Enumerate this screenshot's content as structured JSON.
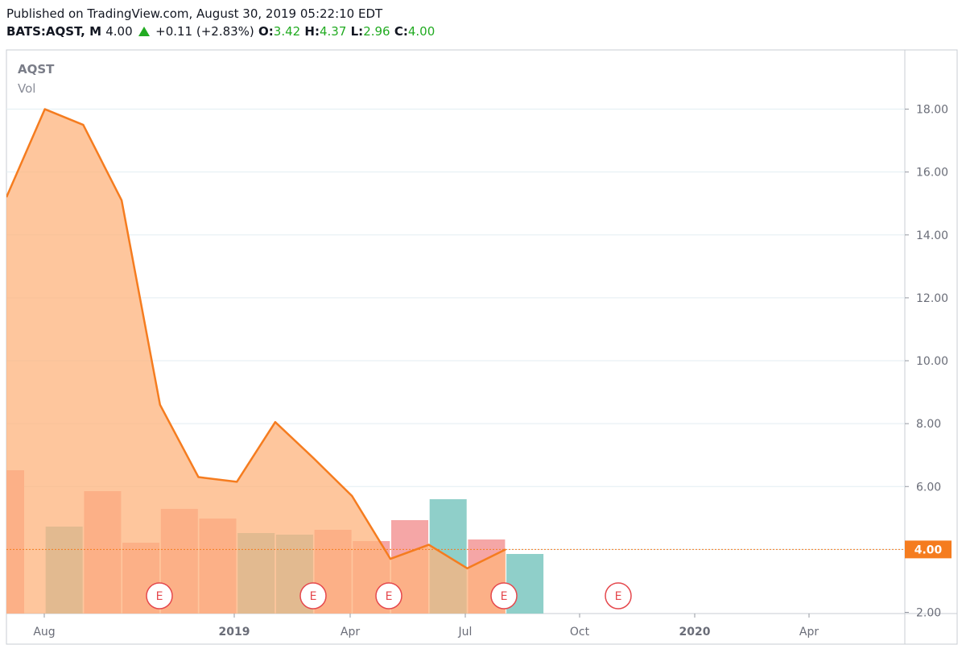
{
  "header": {
    "published": "Published on TradingView.com, August 30, 2019 05:22:10 EDT",
    "symbol": "BATS:AQST, M",
    "last": "4.00",
    "change": "+0.11 (+2.83%)",
    "open_label": "O:",
    "open": "3.42",
    "high_label": "H:",
    "high": "4.37",
    "low_label": "L:",
    "low": "2.96",
    "close_label": "C:",
    "close": "4.00"
  },
  "legend": {
    "symbol": "AQST",
    "volume": "Vol"
  },
  "colors": {
    "line": "#f57c1f",
    "area": "#fdb37c",
    "vol_up": "#8fcfc9",
    "vol_down": "#f5a6a6",
    "earnings": "#e5484d",
    "grid": "#e3eef2"
  },
  "chart_data": {
    "type": "area",
    "series": [
      {
        "x": [
          "2018-07",
          "2018-08",
          "2018-09",
          "2018-10",
          "2018-11",
          "2018-12",
          "2019-01",
          "2019-02",
          "2019-03",
          "2019-04",
          "2019-05",
          "2019-06",
          "2019-07",
          "2019-08"
        ],
        "values": [
          15.2,
          18.0,
          17.5,
          15.1,
          8.6,
          6.3,
          6.15,
          8.05,
          6.9,
          5.7,
          3.7,
          4.15,
          3.4,
          4.0
        ]
      }
    ],
    "volume": {
      "direction": [
        "down",
        "up",
        "down",
        "down",
        "down",
        "down",
        "up",
        "up",
        "down",
        "down",
        "down",
        "up",
        "down",
        "up"
      ],
      "relative": [
        0.89,
        0.54,
        0.76,
        0.44,
        0.65,
        0.59,
        0.5,
        0.49,
        0.52,
        0.45,
        0.58,
        0.71,
        0.46,
        0.37
      ]
    },
    "earnings": [
      "2018-11",
      "2019-03",
      "2019-05",
      "2019-08",
      "2019-11"
    ],
    "earnings_label": "E",
    "last_price": 4.0,
    "last_price_label": "4.00",
    "yticks": [
      "2.00",
      "4.00",
      "6.00",
      "8.00",
      "10.00",
      "12.00",
      "14.00",
      "16.00",
      "18.00"
    ],
    "xticks": [
      "Aug",
      "2019",
      "Apr",
      "Jul",
      "Oct",
      "2020",
      "Apr"
    ],
    "ylim": [
      2,
      19.5
    ],
    "grid": true
  }
}
